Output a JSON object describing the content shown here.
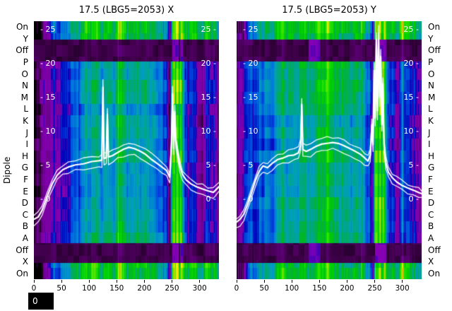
{
  "titles": {
    "left": "17.5 (LBG5=2053) X",
    "right": "17.5 (LBG5=2053) Y"
  },
  "ylabel": "Dipole",
  "row_labels": [
    "On",
    "Y",
    "Off",
    "P",
    "O",
    "N",
    "M",
    "L",
    "K",
    "J",
    "I",
    "H",
    "G",
    "F",
    "E",
    "D",
    "C",
    "B",
    "A",
    "Off",
    "X",
    "On"
  ],
  "x_tick_labels": [
    "0",
    "50",
    "100",
    "150",
    "200",
    "250",
    "300"
  ],
  "inner_tick_labels": [
    "25",
    "20",
    "15",
    "10",
    "5",
    "0"
  ],
  "corner_label": "0",
  "chart_data": {
    "type": "heatmap",
    "title_left": "17.5 (LBG5=2053) X",
    "title_right": "17.5 (LBG5=2053) Y",
    "ylabel": "Dipole",
    "rows": [
      "On",
      "Y",
      "Off",
      "P",
      "O",
      "N",
      "M",
      "L",
      "K",
      "J",
      "I",
      "H",
      "G",
      "F",
      "E",
      "D",
      "C",
      "B",
      "A",
      "Off",
      "X",
      "On"
    ],
    "x_range": [
      0,
      335
    ],
    "x_ticks": [
      0,
      50,
      100,
      150,
      200,
      250,
      300
    ],
    "overlay_value_ticks": [
      25,
      20,
      15,
      10,
      5,
      0
    ],
    "overlay_value_range": [
      0,
      25
    ],
    "legend_position": "none",
    "grid": false,
    "colormap_stops": [
      [
        0.0,
        "#000000"
      ],
      [
        0.05,
        "#43004f"
      ],
      [
        0.1,
        "#77009f"
      ],
      [
        0.16,
        "#8800b5"
      ],
      [
        0.21,
        "#0000b8"
      ],
      [
        0.27,
        "#0040dd"
      ],
      [
        0.33,
        "#0077dd"
      ],
      [
        0.4,
        "#00a0c0"
      ],
      [
        0.47,
        "#00a878"
      ],
      [
        0.53,
        "#00b820"
      ],
      [
        0.6,
        "#00d800"
      ],
      [
        0.68,
        "#44e800"
      ],
      [
        0.74,
        "#c8d800"
      ],
      [
        0.8,
        "#f8f000"
      ],
      [
        0.88,
        "#ff9000"
      ],
      [
        1.0,
        "#cccccc"
      ]
    ],
    "bands": [
      {
        "from": 0,
        "to": 1.55,
        "type": "bright"
      },
      {
        "from": 1.55,
        "to": 3.4,
        "type": "dark"
      },
      {
        "from": 3.4,
        "to": 18.9,
        "type": "main"
      },
      {
        "from": 18.9,
        "to": 20.6,
        "type": "dark"
      },
      {
        "from": 20.6,
        "to": 22,
        "type": "bright"
      }
    ],
    "main_profile": [
      [
        0,
        0.05
      ],
      [
        8,
        0.1
      ],
      [
        20,
        0.15
      ],
      [
        40,
        0.2
      ],
      [
        60,
        0.28
      ],
      [
        80,
        0.33
      ],
      [
        100,
        0.38
      ],
      [
        120,
        0.43
      ],
      [
        140,
        0.45
      ],
      [
        160,
        0.47
      ],
      [
        180,
        0.45
      ],
      [
        200,
        0.41
      ],
      [
        215,
        0.36
      ],
      [
        230,
        0.3
      ],
      [
        240,
        0.26
      ],
      [
        246,
        0.07
      ],
      [
        250,
        0.6
      ],
      [
        253,
        0.68
      ],
      [
        256,
        0.5
      ],
      [
        259,
        0.7
      ],
      [
        262,
        0.55
      ],
      [
        265,
        0.68
      ],
      [
        268,
        0.45
      ],
      [
        272,
        0.28
      ],
      [
        278,
        0.2
      ],
      [
        290,
        0.17
      ],
      [
        305,
        0.15
      ],
      [
        320,
        0.14
      ],
      [
        335,
        0.12
      ]
    ],
    "bright_profile": [
      [
        0,
        0.02
      ],
      [
        14,
        0.03
      ],
      [
        24,
        0.22
      ],
      [
        40,
        0.34
      ],
      [
        60,
        0.43
      ],
      [
        85,
        0.5
      ],
      [
        110,
        0.55
      ],
      [
        140,
        0.58
      ],
      [
        170,
        0.55
      ],
      [
        200,
        0.5
      ],
      [
        225,
        0.45
      ],
      [
        240,
        0.38
      ],
      [
        247,
        0.1
      ],
      [
        251,
        0.72
      ],
      [
        255,
        0.62
      ],
      [
        259,
        0.76
      ],
      [
        263,
        0.58
      ],
      [
        267,
        0.7
      ],
      [
        272,
        0.52
      ],
      [
        282,
        0.5
      ],
      [
        300,
        0.55
      ],
      [
        315,
        0.48
      ],
      [
        335,
        0.42
      ]
    ],
    "overlay_line_offsets": [
      0,
      -0.7,
      0.55
    ],
    "panels": [
      {
        "title": "17.5 (LBG5=2053) X",
        "seed": 7,
        "boost": 0,
        "overlay_series": [
          [
            0,
            -3
          ],
          [
            8,
            -2.6
          ],
          [
            15,
            -1.6
          ],
          [
            24,
            0.4
          ],
          [
            33,
            2.2
          ],
          [
            42,
            3.6
          ],
          [
            52,
            4.4
          ],
          [
            62,
            4.8
          ],
          [
            75,
            5.1
          ],
          [
            90,
            5.3
          ],
          [
            105,
            5.5
          ],
          [
            118,
            5.7
          ],
          [
            123,
            5.8
          ],
          [
            125,
            16.5
          ],
          [
            127,
            6.1
          ],
          [
            131,
            6.1
          ],
          [
            133,
            12.5
          ],
          [
            135,
            6.2
          ],
          [
            142,
            6.4
          ],
          [
            152,
            6.9
          ],
          [
            162,
            7.3
          ],
          [
            172,
            7.6
          ],
          [
            182,
            7.5
          ],
          [
            192,
            7.1
          ],
          [
            202,
            6.6
          ],
          [
            212,
            6
          ],
          [
            222,
            5.3
          ],
          [
            232,
            4.7
          ],
          [
            240,
            4.3
          ],
          [
            246,
            3.2
          ],
          [
            249,
            8
          ],
          [
            251,
            15.5
          ],
          [
            253,
            7.5
          ],
          [
            255,
            13
          ],
          [
            257,
            8.5
          ],
          [
            260,
            7
          ],
          [
            264,
            5
          ],
          [
            269,
            3.6
          ],
          [
            276,
            2.8
          ],
          [
            285,
            2.2
          ],
          [
            295,
            1.8
          ],
          [
            305,
            1.5
          ],
          [
            315,
            1.2
          ],
          [
            325,
            1
          ],
          [
            335,
            1.8
          ]
        ]
      },
      {
        "title": "17.5 (LBG5=2053) Y",
        "seed": 13,
        "boost": 0.05,
        "overlay_series": [
          [
            0,
            -3.4
          ],
          [
            6,
            -3
          ],
          [
            13,
            -2.2
          ],
          [
            20,
            -0.8
          ],
          [
            27,
            1
          ],
          [
            34,
            2.8
          ],
          [
            41,
            4.2
          ],
          [
            48,
            4.9
          ],
          [
            56,
            4.6
          ],
          [
            64,
            5.3
          ],
          [
            74,
            5.8
          ],
          [
            84,
            6.1
          ],
          [
            94,
            6.4
          ],
          [
            104,
            6.6
          ],
          [
            112,
            6.9
          ],
          [
            116,
            8
          ],
          [
            118,
            14
          ],
          [
            120,
            7.4
          ],
          [
            126,
            7.1
          ],
          [
            134,
            7.4
          ],
          [
            144,
            7.8
          ],
          [
            154,
            8.1
          ],
          [
            164,
            8.3
          ],
          [
            174,
            8.4
          ],
          [
            184,
            8.2
          ],
          [
            194,
            7.9
          ],
          [
            204,
            7.5
          ],
          [
            214,
            7.1
          ],
          [
            224,
            6.6
          ],
          [
            232,
            6.1
          ],
          [
            238,
            5.7
          ],
          [
            242,
            6.5
          ],
          [
            245,
            11
          ],
          [
            247,
            8
          ],
          [
            249,
            19
          ],
          [
            251,
            12
          ],
          [
            253,
            23.5
          ],
          [
            255,
            13
          ],
          [
            257,
            24.5
          ],
          [
            259,
            15
          ],
          [
            261,
            21
          ],
          [
            263,
            11
          ],
          [
            265,
            17
          ],
          [
            267,
            8
          ],
          [
            270,
            5.5
          ],
          [
            275,
            4
          ],
          [
            282,
            3.2
          ],
          [
            290,
            2.6
          ],
          [
            300,
            2.1
          ],
          [
            310,
            1.7
          ],
          [
            320,
            1.3
          ],
          [
            330,
            1
          ],
          [
            335,
            0.8
          ]
        ]
      }
    ]
  }
}
